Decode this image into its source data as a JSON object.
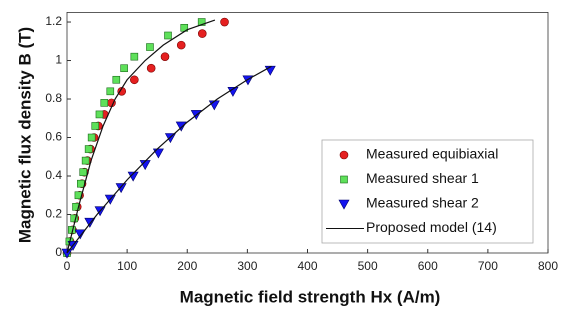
{
  "chart_data": {
    "type": "scatter",
    "xlabel": "Magnetic field strength Hx (A/m)",
    "ylabel": "Magnetic flux density B (T)",
    "xlim": [
      0,
      800
    ],
    "xticks": [
      0,
      100,
      200,
      300,
      400,
      500,
      600,
      700,
      800
    ],
    "ylim": [
      0,
      1.25
    ],
    "yticks": [
      0,
      0.2,
      0.4,
      0.6,
      0.8,
      1,
      1.2
    ],
    "grid": false,
    "legend": "lower right",
    "series": [
      {
        "name": "Measured equibiaxial",
        "marker": "circle",
        "color": "#e52020",
        "x": [
          0,
          5,
          9,
          13,
          17,
          21,
          25,
          29,
          34,
          39,
          45,
          52,
          62,
          74,
          91,
          112,
          140,
          163,
          190,
          225,
          262
        ],
        "values": [
          0,
          0.06,
          0.12,
          0.18,
          0.24,
          0.3,
          0.36,
          0.42,
          0.48,
          0.54,
          0.6,
          0.66,
          0.72,
          0.78,
          0.84,
          0.9,
          0.96,
          1.02,
          1.08,
          1.14,
          1.2
        ]
      },
      {
        "name": "Measured shear 1",
        "marker": "square",
        "color": "#5ee05a",
        "x": [
          0,
          4,
          8,
          12,
          15,
          19,
          23,
          27,
          31,
          36,
          41,
          47,
          54,
          62,
          72,
          82,
          95,
          112,
          138,
          168,
          195,
          224
        ],
        "values": [
          0,
          0.06,
          0.12,
          0.18,
          0.24,
          0.3,
          0.36,
          0.42,
          0.48,
          0.54,
          0.6,
          0.66,
          0.72,
          0.78,
          0.84,
          0.9,
          0.96,
          1.02,
          1.07,
          1.13,
          1.17,
          1.2
        ]
      },
      {
        "name": "Measured shear 2",
        "marker": "triangle",
        "color": "#1414f0",
        "x": [
          0,
          10,
          22,
          38,
          55,
          72,
          90,
          110,
          130,
          152,
          172,
          190,
          215,
          245,
          276,
          301,
          338
        ],
        "values": [
          0,
          0.04,
          0.1,
          0.16,
          0.22,
          0.28,
          0.34,
          0.4,
          0.46,
          0.52,
          0.6,
          0.66,
          0.72,
          0.77,
          0.84,
          0.9,
          0.95
        ]
      },
      {
        "name": "Proposed model (14)",
        "marker": "line",
        "color": "#111111",
        "pieces": [
          {
            "x": [
              0,
              20,
              40,
              60,
              80,
              100,
              130,
              160,
              200,
              246
            ],
            "values": [
              0,
              0.25,
              0.48,
              0.66,
              0.8,
              0.9,
              1.0,
              1.08,
              1.16,
              1.21
            ]
          },
          {
            "x": [
              0,
              50,
              100,
              150,
              200,
              250,
              300,
              340
            ],
            "values": [
              0,
              0.2,
              0.38,
              0.54,
              0.68,
              0.8,
              0.9,
              0.97
            ]
          }
        ]
      }
    ]
  }
}
